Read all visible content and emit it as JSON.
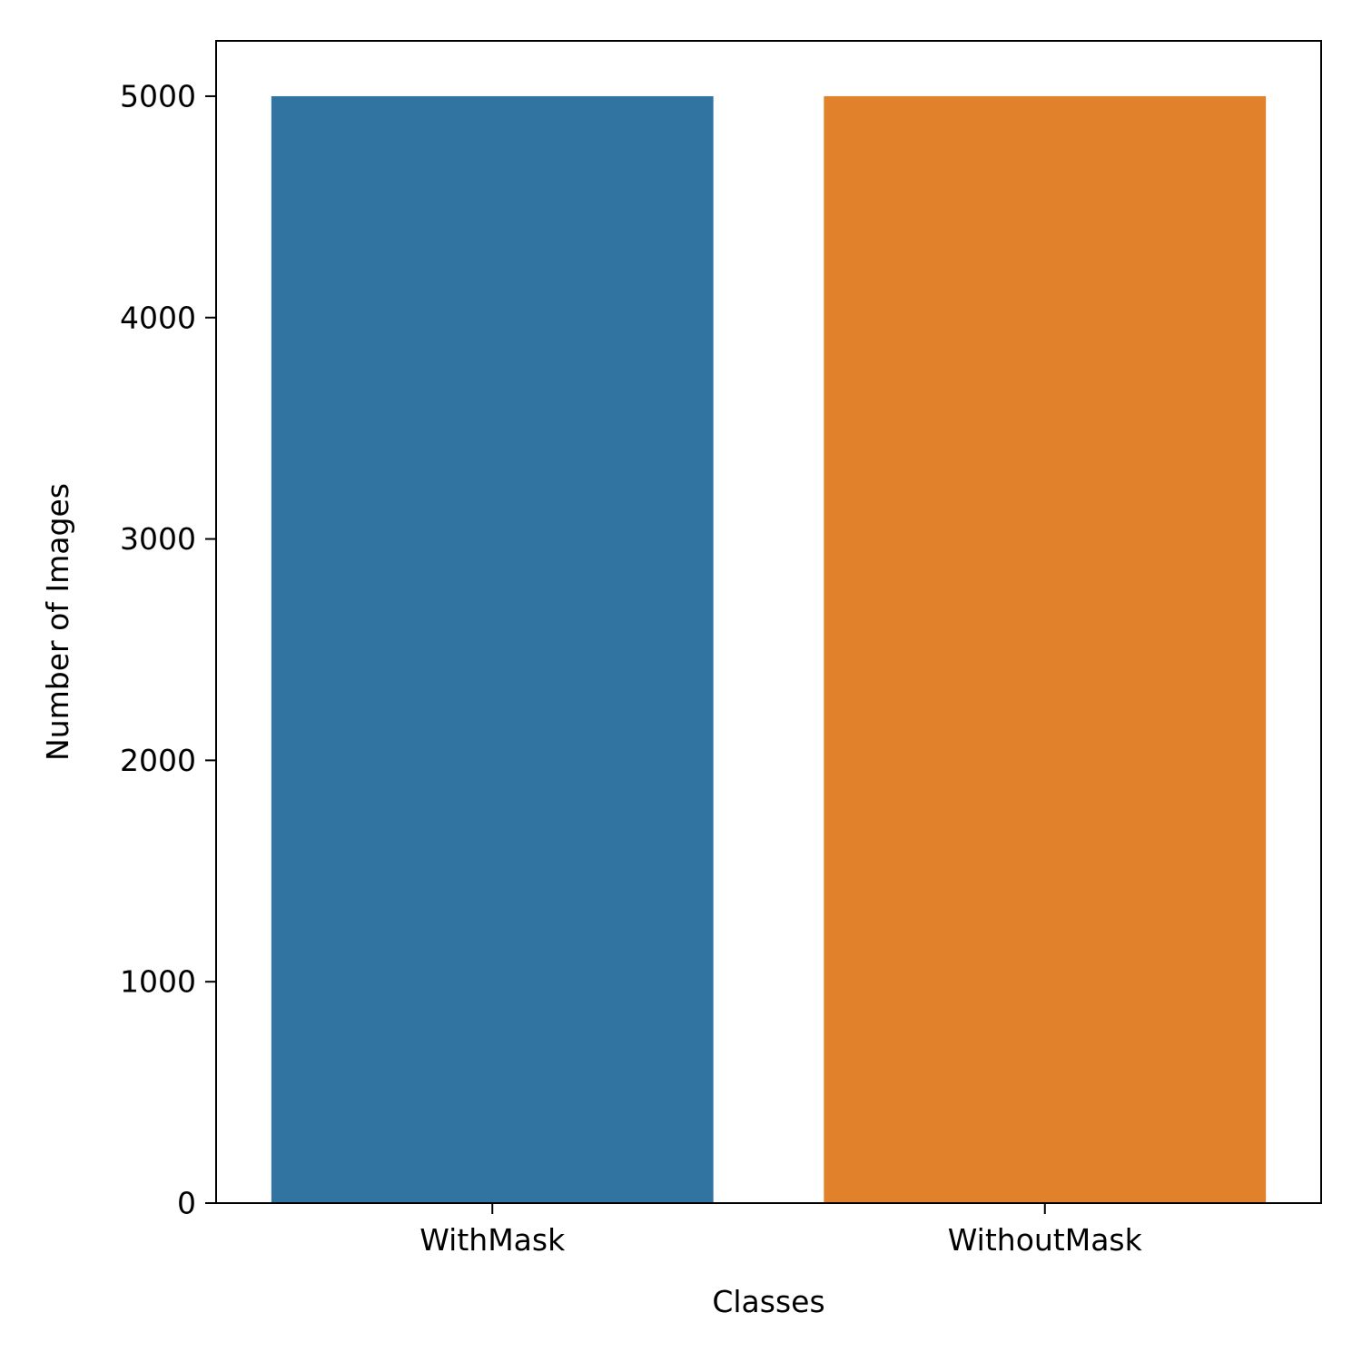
{
  "chart_data": {
    "type": "bar",
    "categories": [
      "WithMask",
      "WithoutMask"
    ],
    "values": [
      5000,
      5000
    ],
    "xlabel": "Classes",
    "ylabel": "Number of Images",
    "ylim": [
      0,
      5250
    ],
    "yticks": [
      0,
      1000,
      2000,
      3000,
      4000,
      5000
    ],
    "ytick_labels": [
      "0",
      "1000",
      "2000",
      "3000",
      "4000",
      "5000"
    ],
    "colors": [
      "#3274a1",
      "#e1812c"
    ],
    "grid": false,
    "legend": "none"
  }
}
